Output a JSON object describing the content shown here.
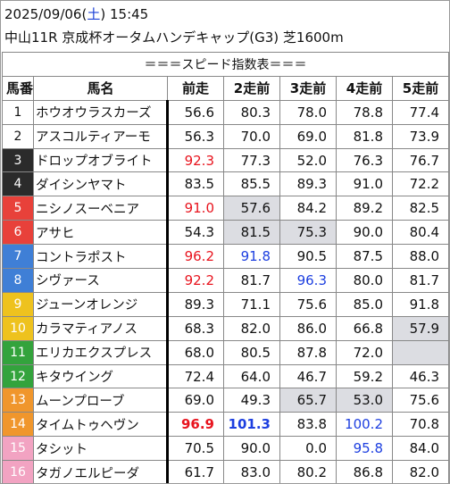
{
  "header": {
    "date": "2025/09/06",
    "dow_open": "(",
    "dow": "土",
    "dow_close": ")",
    "time": "15:45",
    "race_line": "中山11R 京成杯オータムハンデキャップ(G3) 芝1600m"
  },
  "table": {
    "title": "＝＝＝スピード指数表＝＝＝",
    "columns": [
      "馬番",
      "馬名",
      "前走",
      "2走前",
      "3走前",
      "4走前",
      "5走前"
    ],
    "colors": {
      "red": "#e8141e",
      "blue": "#1d3fe0",
      "highlight": "#dcdde2"
    },
    "rows": [
      {
        "num": "1",
        "num_bg": "#ffffff",
        "num_fg": "#111111",
        "name": "ホウオウラスカーズ",
        "cells": [
          {
            "v": "56.6"
          },
          {
            "v": "80.3"
          },
          {
            "v": "78.0"
          },
          {
            "v": "78.8"
          },
          {
            "v": "77.4"
          }
        ]
      },
      {
        "num": "2",
        "num_bg": "#ffffff",
        "num_fg": "#111111",
        "name": "アスコルティアーモ",
        "cells": [
          {
            "v": "56.3"
          },
          {
            "v": "70.0"
          },
          {
            "v": "69.0"
          },
          {
            "v": "81.8"
          },
          {
            "v": "73.9"
          }
        ]
      },
      {
        "num": "3",
        "num_bg": "#2b2b2b",
        "num_fg": "#ffffff",
        "name": "ドロップオブライト",
        "cells": [
          {
            "v": "92.3",
            "c": "red"
          },
          {
            "v": "77.3"
          },
          {
            "v": "52.0"
          },
          {
            "v": "76.3"
          },
          {
            "v": "76.7"
          }
        ]
      },
      {
        "num": "4",
        "num_bg": "#2b2b2b",
        "num_fg": "#ffffff",
        "name": "ダイシンヤマト",
        "cells": [
          {
            "v": "83.5"
          },
          {
            "v": "85.5"
          },
          {
            "v": "89.3"
          },
          {
            "v": "91.0"
          },
          {
            "v": "72.2"
          }
        ]
      },
      {
        "num": "5",
        "num_bg": "#e8413a",
        "num_fg": "#ffffff",
        "name": "ニシノスーベニア",
        "cells": [
          {
            "v": "91.0",
            "c": "red"
          },
          {
            "v": "57.6",
            "bg": true
          },
          {
            "v": "84.2"
          },
          {
            "v": "89.2"
          },
          {
            "v": "82.5"
          }
        ]
      },
      {
        "num": "6",
        "num_bg": "#e8413a",
        "num_fg": "#ffffff",
        "name": "アサヒ",
        "cells": [
          {
            "v": "54.3"
          },
          {
            "v": "81.5",
            "bg": true
          },
          {
            "v": "75.3",
            "bg": true
          },
          {
            "v": "90.0"
          },
          {
            "v": "80.4"
          }
        ]
      },
      {
        "num": "7",
        "num_bg": "#3f7fd6",
        "num_fg": "#ffffff",
        "name": "コントラポスト",
        "cells": [
          {
            "v": "96.2",
            "c": "red"
          },
          {
            "v": "91.8",
            "c": "blue"
          },
          {
            "v": "90.5"
          },
          {
            "v": "87.5"
          },
          {
            "v": "88.0"
          }
        ]
      },
      {
        "num": "8",
        "num_bg": "#3f7fd6",
        "num_fg": "#ffffff",
        "name": "シヴァース",
        "cells": [
          {
            "v": "92.2",
            "c": "red"
          },
          {
            "v": "81.7"
          },
          {
            "v": "96.3",
            "c": "blue"
          },
          {
            "v": "80.0"
          },
          {
            "v": "81.7"
          }
        ]
      },
      {
        "num": "9",
        "num_bg": "#eec21e",
        "num_fg": "#ffffff",
        "name": "ジューンオレンジ",
        "cells": [
          {
            "v": "89.3"
          },
          {
            "v": "71.1"
          },
          {
            "v": "75.6"
          },
          {
            "v": "85.0"
          },
          {
            "v": "91.8"
          }
        ]
      },
      {
        "num": "10",
        "num_bg": "#eec21e",
        "num_fg": "#ffffff",
        "name": "カラマティアノス",
        "cells": [
          {
            "v": "68.3"
          },
          {
            "v": "82.0"
          },
          {
            "v": "86.0"
          },
          {
            "v": "66.8"
          },
          {
            "v": "57.9",
            "bg": true
          }
        ]
      },
      {
        "num": "11",
        "num_bg": "#33a33c",
        "num_fg": "#ffffff",
        "name": "エリカエクスプレス",
        "cells": [
          {
            "v": "68.0"
          },
          {
            "v": "80.5"
          },
          {
            "v": "87.8"
          },
          {
            "v": "72.0"
          },
          {
            "v": "",
            "bg": true
          }
        ]
      },
      {
        "num": "12",
        "num_bg": "#33a33c",
        "num_fg": "#ffffff",
        "name": "キタウイング",
        "cells": [
          {
            "v": "72.4"
          },
          {
            "v": "64.0"
          },
          {
            "v": "46.7"
          },
          {
            "v": "59.2"
          },
          {
            "v": "46.3"
          }
        ]
      },
      {
        "num": "13",
        "num_bg": "#f0962c",
        "num_fg": "#ffffff",
        "name": "ムーンプローブ",
        "cells": [
          {
            "v": "69.0"
          },
          {
            "v": "49.3"
          },
          {
            "v": "65.7",
            "bg": true
          },
          {
            "v": "53.0",
            "bg": true
          },
          {
            "v": "75.6"
          }
        ]
      },
      {
        "num": "14",
        "num_bg": "#f0962c",
        "num_fg": "#ffffff",
        "name": "タイムトゥヘヴン",
        "cells": [
          {
            "v": "96.9",
            "c": "red",
            "b": true
          },
          {
            "v": "101.3",
            "c": "blue",
            "b": true
          },
          {
            "v": "83.8"
          },
          {
            "v": "100.2",
            "c": "blue"
          },
          {
            "v": "70.8"
          }
        ]
      },
      {
        "num": "15",
        "num_bg": "#f2a3c2",
        "num_fg": "#ffffff",
        "name": "タシット",
        "cells": [
          {
            "v": "70.5"
          },
          {
            "v": "90.0"
          },
          {
            "v": "0.0"
          },
          {
            "v": "95.8",
            "c": "blue"
          },
          {
            "v": "84.0"
          }
        ]
      },
      {
        "num": "16",
        "num_bg": "#f2a3c2",
        "num_fg": "#ffffff",
        "name": "タガノエルピーダ",
        "cells": [
          {
            "v": "61.7"
          },
          {
            "v": "83.0"
          },
          {
            "v": "80.2"
          },
          {
            "v": "86.8"
          },
          {
            "v": "82.0"
          }
        ]
      }
    ]
  }
}
